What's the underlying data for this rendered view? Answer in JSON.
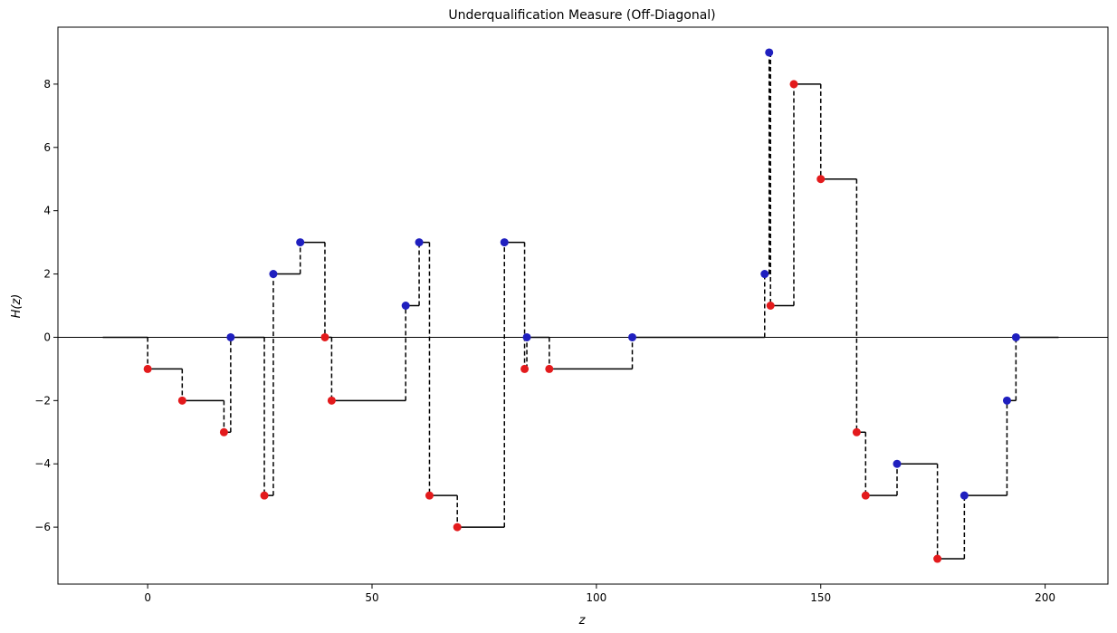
{
  "chart_data": {
    "type": "line",
    "title": "Underqualification Measure (Off-Diagonal)",
    "xlabel": "z",
    "ylabel": "H(z)",
    "xlim": [
      -20,
      214
    ],
    "ylim": [
      -7.8,
      9.8
    ],
    "xticks": [
      0,
      50,
      100,
      150,
      200
    ],
    "yticks": [
      -6,
      -4,
      -2,
      0,
      2,
      4,
      6,
      8
    ],
    "grid": false,
    "legend": "none",
    "colors": {
      "step": "#000000",
      "red_points": "#e31a1c",
      "blue_points": "#1f1fbf",
      "zero_line": "#000000"
    },
    "step_start_x": -10,
    "step_end_x": 203,
    "series": [
      {
        "points": [
          {
            "x": 0,
            "y": -1,
            "color": "red"
          },
          {
            "x": 7.7,
            "y": -2,
            "color": "red"
          },
          {
            "x": 17,
            "y": -3,
            "color": "red"
          },
          {
            "x": 18.5,
            "y": 0,
            "color": "blue"
          },
          {
            "x": 26,
            "y": -5,
            "color": "red"
          },
          {
            "x": 28,
            "y": 2,
            "color": "blue"
          },
          {
            "x": 34,
            "y": 3,
            "color": "blue"
          },
          {
            "x": 39.5,
            "y": 0,
            "color": "red"
          },
          {
            "x": 41,
            "y": -2,
            "color": "red"
          },
          {
            "x": 57.5,
            "y": 1,
            "color": "blue"
          },
          {
            "x": 60.5,
            "y": 3,
            "color": "blue"
          },
          {
            "x": 62.8,
            "y": -5,
            "color": "red"
          },
          {
            "x": 69,
            "y": -6,
            "color": "red"
          },
          {
            "x": 79.5,
            "y": 3,
            "color": "blue"
          },
          {
            "x": 84,
            "y": -1,
            "color": "red"
          },
          {
            "x": 84.5,
            "y": 0,
            "color": "blue"
          },
          {
            "x": 89.5,
            "y": -1,
            "color": "red"
          },
          {
            "x": 108,
            "y": 0,
            "color": "blue"
          },
          {
            "x": 137.5,
            "y": 2,
            "color": "blue"
          },
          {
            "x": 138.5,
            "y": 9,
            "color": "blue"
          },
          {
            "x": 138.8,
            "y": 1,
            "color": "red"
          },
          {
            "x": 144,
            "y": 8,
            "color": "red"
          },
          {
            "x": 150,
            "y": 5,
            "color": "red"
          },
          {
            "x": 158,
            "y": -3,
            "color": "red"
          },
          {
            "x": 160,
            "y": -5,
            "color": "red"
          },
          {
            "x": 167,
            "y": -4,
            "color": "blue"
          },
          {
            "x": 176,
            "y": -7,
            "color": "red"
          },
          {
            "x": 182,
            "y": -5,
            "color": "blue"
          },
          {
            "x": 191.5,
            "y": -2,
            "color": "blue"
          },
          {
            "x": 193.5,
            "y": 0,
            "color": "blue"
          }
        ]
      }
    ]
  }
}
